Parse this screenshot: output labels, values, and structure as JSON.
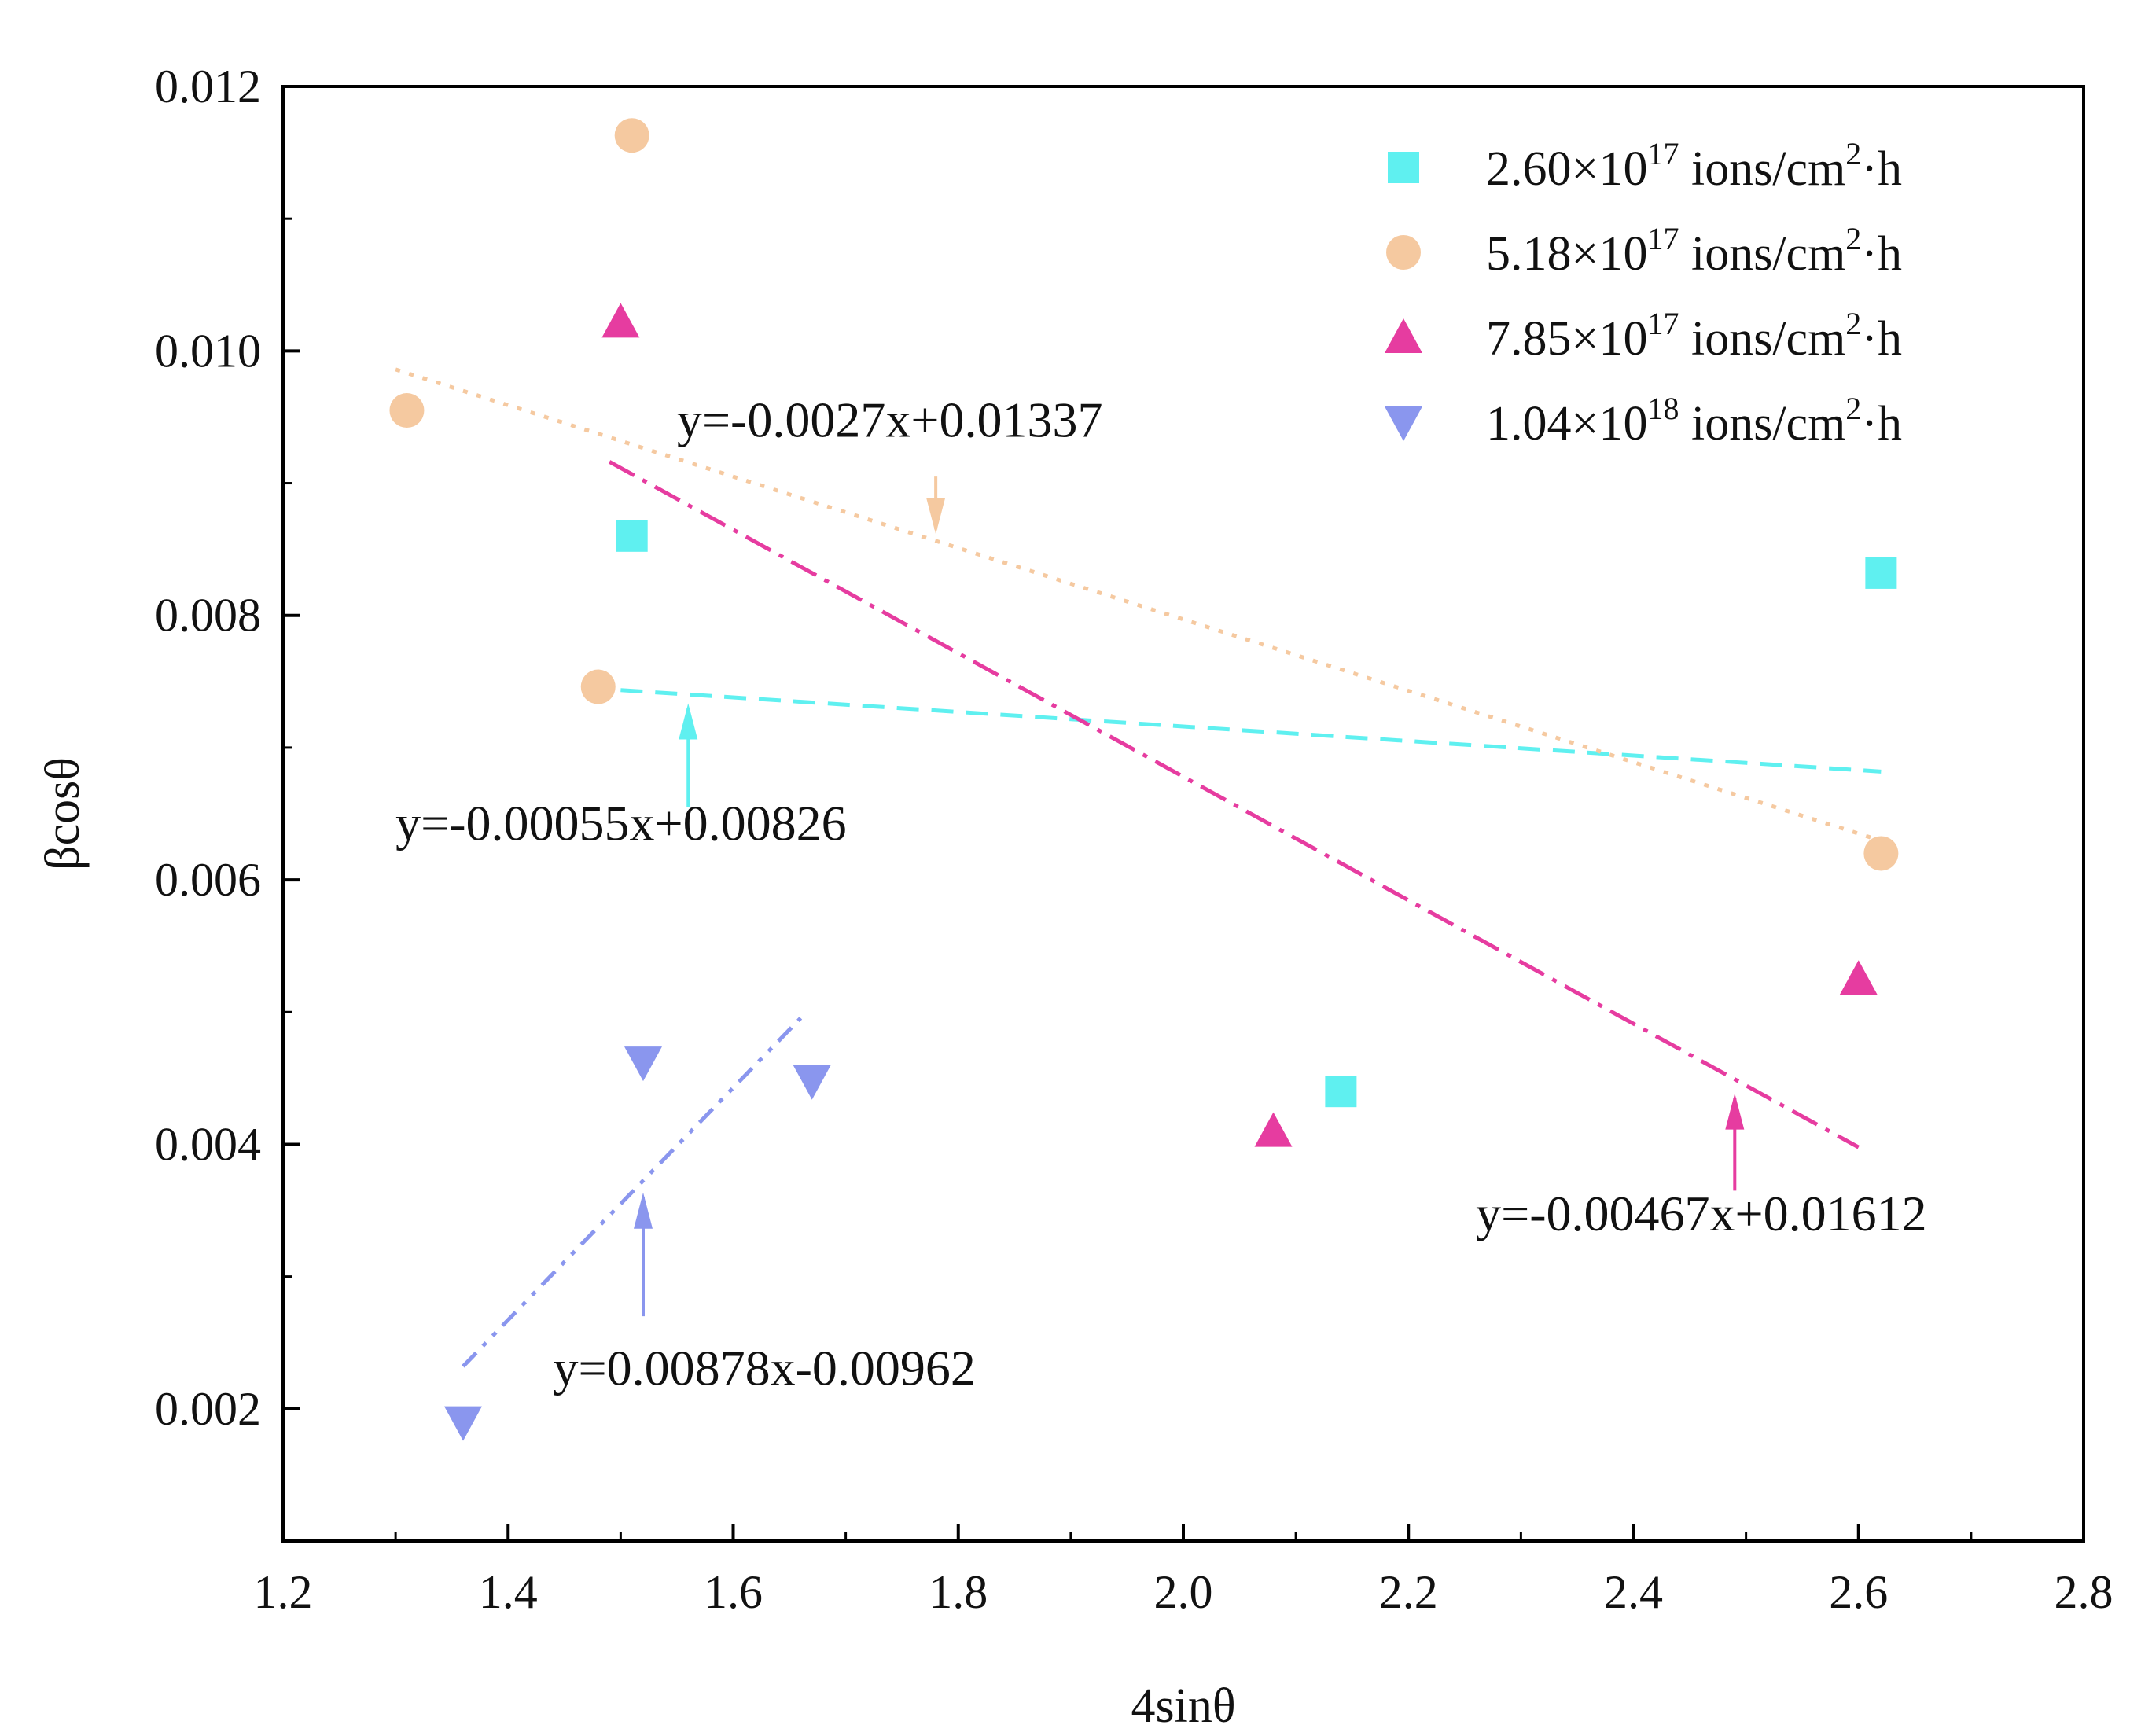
{
  "chart_data": {
    "type": "scatter",
    "title": "",
    "xlabel": "4sinθ",
    "ylabel": "βcosθ",
    "xlim": [
      1.2,
      2.8
    ],
    "ylim": [
      0.001,
      0.012
    ],
    "x_ticks": [
      1.2,
      1.4,
      1.6,
      1.8,
      2.0,
      2.2,
      2.4,
      2.6,
      2.8
    ],
    "x_tick_labels": [
      "1.2",
      "1.4",
      "1.6",
      "1.8",
      "2.0",
      "2.2",
      "2.4",
      "2.6",
      "2.8"
    ],
    "y_ticks": [
      0.002,
      0.004,
      0.006,
      0.008,
      0.01,
      0.012
    ],
    "y_tick_labels": [
      "0.002",
      "0.004",
      "0.006",
      "0.008",
      "0.010",
      "0.012"
    ],
    "grid": false,
    "legend_position": "top-right",
    "legend_suffix": " ions/cm",
    "legend_power": "2",
    "legend_unit_tail": "·h",
    "series": [
      {
        "name": "2.60×10^17 ions/cm2·h",
        "mantissa": "2.60×10",
        "exponent": "17",
        "marker": "square",
        "color": "#5ff0f0",
        "points": [
          [
            1.51,
            0.0086
          ],
          [
            2.14,
            0.0044
          ],
          [
            2.62,
            0.00832
          ]
        ],
        "fit": {
          "label": "y=-0.00055x+0.00826",
          "slope": -0.00055,
          "intercept": 0.00826,
          "x_range": [
            1.5,
            2.62
          ],
          "dash": "28 16"
        }
      },
      {
        "name": "5.18×10^17 ions/cm2·h",
        "mantissa": "5.18×10",
        "exponent": "17",
        "marker": "circle",
        "color": "#f5c9a0",
        "points": [
          [
            1.31,
            0.00955
          ],
          [
            1.51,
            0.01163
          ],
          [
            1.48,
            0.00746
          ],
          [
            2.62,
            0.0062
          ]
        ],
        "fit": {
          "label": "y=-0.0027x+0.01337",
          "slope": -0.0027,
          "intercept": 0.01337,
          "x_range": [
            1.3,
            2.62
          ],
          "dash": "6 12"
        }
      },
      {
        "name": "7.85×10^17 ions/cm2·h",
        "mantissa": "7.85×10",
        "exponent": "17",
        "marker": "triangle-up",
        "color": "#e63ca0",
        "points": [
          [
            1.5,
            0.01022
          ],
          [
            2.08,
            0.0041
          ],
          [
            2.6,
            0.00525
          ]
        ],
        "fit": {
          "label": "y=-0.00467x+0.01612",
          "slope": -0.00467,
          "intercept": 0.01612,
          "x_range": [
            1.49,
            2.6
          ],
          "dash": "36 12 6 12"
        }
      },
      {
        "name": "1.04×10^18 ions/cm2·h",
        "mantissa": "1.04×10",
        "exponent": "18",
        "marker": "triangle-down",
        "color": "#8a96ee",
        "points": [
          [
            1.36,
            0.0019
          ],
          [
            1.52,
            0.00462
          ],
          [
            1.67,
            0.00448
          ]
        ],
        "fit": {
          "label": "y=0.00878x-0.00962",
          "slope": 0.00878,
          "intercept": -0.00962,
          "x_range": [
            1.36,
            1.66
          ],
          "dash": "24 12 6 12 6 12"
        }
      }
    ],
    "annotations": [
      {
        "text": "y=-0.0027x+0.01337",
        "series_index": 1,
        "arrow_x": 1.78,
        "arrow_from_y": 0.00905,
        "arrow_to_y": 0.00865,
        "text_x": 1.55,
        "text_y": 0.00935
      },
      {
        "text": "y=-0.00055x+0.00826",
        "series_index": 0,
        "arrow_x": 1.56,
        "arrow_from_y": 0.00655,
        "arrow_to_y": 0.0073,
        "text_x": 1.3,
        "text_y": 0.0063
      },
      {
        "text": "y=-0.00467x+0.01612",
        "series_index": 2,
        "arrow_x": 2.49,
        "arrow_from_y": 0.00365,
        "arrow_to_y": 0.00435,
        "text_x": 2.26,
        "text_y": 0.00335
      },
      {
        "text": "y=0.00878x-0.00962",
        "series_index": 3,
        "arrow_x": 1.52,
        "arrow_from_y": 0.0027,
        "arrow_to_y": 0.0036,
        "text_x": 1.44,
        "text_y": 0.00218
      }
    ]
  }
}
